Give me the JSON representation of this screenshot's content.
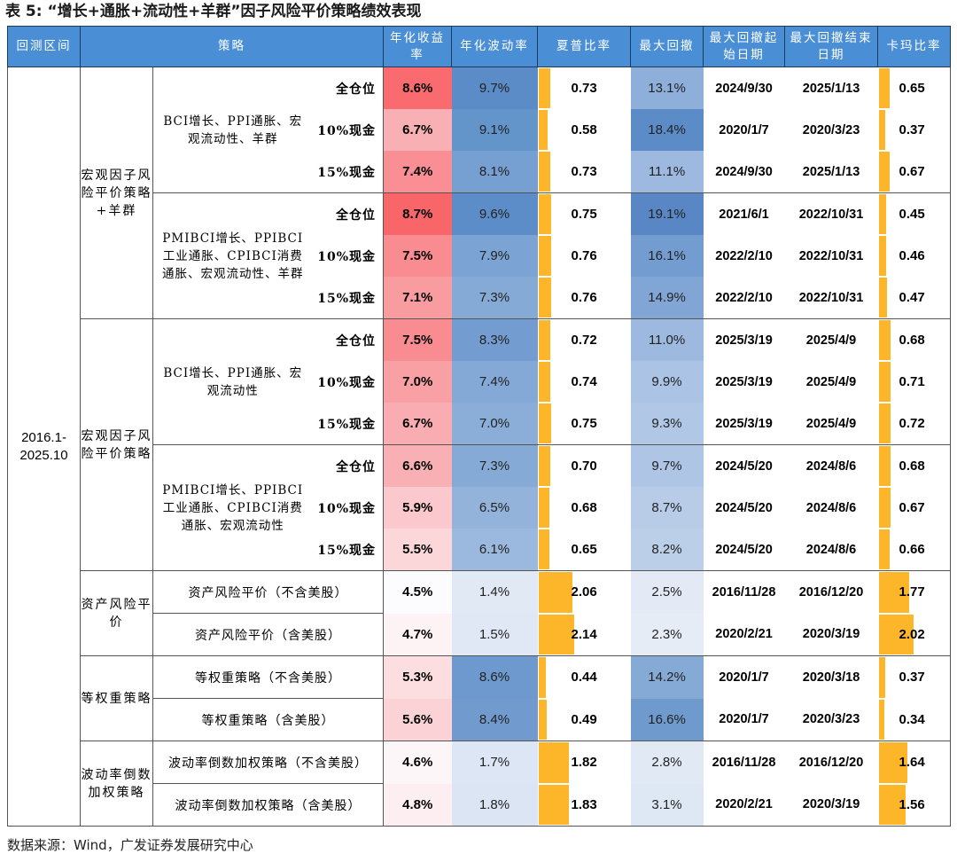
{
  "title": "表 5:  “增长+通胀+流动性+羊群”因子风险平价策略绩效表现",
  "source": "数据来源：Wind，广发证券发展研究中心",
  "header": {
    "period": "回测区间",
    "strategy": "策略",
    "annual_return": "年化收益率",
    "annual_vol": "年化波动率",
    "sharpe": "夏普比率",
    "max_dd": "最大回撤",
    "dd_start": "最大回撤起始日期",
    "dd_end": "最大回撤结束日期",
    "calmar": "卡玛比率"
  },
  "period": "2016.1-2025.10",
  "groups": [
    {
      "label": "宏观因子风险平价策略+羊群"
    },
    {
      "label": "宏观因子风险平价策略"
    },
    {
      "label": "资产风险平价"
    },
    {
      "label": "等权重策略"
    },
    {
      "label": "波动率倒数加权策略"
    }
  ],
  "subgroups": [
    {
      "label": "BCI增长、PPI通胀、宏观流动性、羊群"
    },
    {
      "label": "PMIBCI增长、PPIBCI工业通胀、CPIBCI消费通胀、宏观流动性、羊群"
    },
    {
      "label": "BCI增长、PPI通胀、宏观流动性"
    },
    {
      "label": "PMIBCI增长、PPIBCI工业通胀、CPIBCI消费通胀、宏观流动性"
    }
  ],
  "rows": [
    {
      "name": "全仓位",
      "ret": "8.6%",
      "vol": "9.7%",
      "sharpe": "0.73",
      "dd": "13.1%",
      "start": "2024/9/30",
      "end": "2025/1/13",
      "calmar": "0.65",
      "ret_bg": "#f96b6e",
      "vol_bg": "#5b8cc8",
      "dd_bg": "#8eafd9",
      "sharpe_w": "80",
      "calmar_w": "56"
    },
    {
      "name": "10%现金",
      "ret": "6.7%",
      "vol": "9.1%",
      "sharpe": "0.58",
      "dd": "18.4%",
      "start": "2020/1/7",
      "end": "2020/3/23",
      "calmar": "0.37",
      "ret_bg": "#f9b0b5",
      "vol_bg": "#6395cb",
      "dd_bg": "#5b8cc8",
      "sharpe_w": "63",
      "calmar_w": "32"
    },
    {
      "name": "15%现金",
      "ret": "7.4%",
      "vol": "8.1%",
      "sharpe": "0.73",
      "dd": "11.1%",
      "start": "2024/9/30",
      "end": "2025/1/13",
      "calmar": "0.67",
      "ret_bg": "#f98f94",
      "vol_bg": "#77a0d2",
      "dd_bg": "#9db9e0",
      "sharpe_w": "80",
      "calmar_w": "58"
    },
    {
      "name": "全仓位",
      "ret": "8.7%",
      "vol": "9.6%",
      "sharpe": "0.75",
      "dd": "19.1%",
      "start": "2021/6/1",
      "end": "2022/10/31",
      "calmar": "0.45",
      "ret_bg": "#f96669",
      "vol_bg": "#5d8dc8",
      "dd_bg": "#5987c6",
      "sharpe_w": "82",
      "calmar_w": "40"
    },
    {
      "name": "10%现金",
      "ret": "7.5%",
      "vol": "7.9%",
      "sharpe": "0.76",
      "dd": "16.1%",
      "start": "2022/2/10",
      "end": "2022/10/31",
      "calmar": "0.46",
      "ret_bg": "#f98c91",
      "vol_bg": "#7ba3d3",
      "dd_bg": "#739dd1",
      "sharpe_w": "83",
      "calmar_w": "41"
    },
    {
      "name": "15%现金",
      "ret": "7.1%",
      "vol": "7.3%",
      "sharpe": "0.76",
      "dd": "14.9%",
      "start": "2022/2/10",
      "end": "2022/10/31",
      "calmar": "0.47",
      "ret_bg": "#f99ca0",
      "vol_bg": "#86aad6",
      "dd_bg": "#81a6d5",
      "sharpe_w": "83",
      "calmar_w": "42"
    },
    {
      "name": "全仓位",
      "ret": "7.5%",
      "vol": "8.3%",
      "sharpe": "0.72",
      "dd": "11.0%",
      "start": "2025/3/19",
      "end": "2025/4/9",
      "calmar": "0.68",
      "ret_bg": "#f98c91",
      "vol_bg": "#739dd0",
      "dd_bg": "#9eb9e0",
      "sharpe_w": "79",
      "calmar_w": "61"
    },
    {
      "name": "10%现金",
      "ret": "7.0%",
      "vol": "7.4%",
      "sharpe": "0.74",
      "dd": "9.9%",
      "start": "2025/3/19",
      "end": "2025/4/9",
      "calmar": "0.71",
      "ret_bg": "#f9a0a5",
      "vol_bg": "#84a9d6",
      "dd_bg": "#abc3e4",
      "sharpe_w": "81",
      "calmar_w": "63"
    },
    {
      "name": "15%现金",
      "ret": "6.7%",
      "vol": "7.0%",
      "sharpe": "0.75",
      "dd": "9.3%",
      "start": "2025/3/19",
      "end": "2025/4/9",
      "calmar": "0.72",
      "ret_bg": "#f9acb1",
      "vol_bg": "#8aaed8",
      "dd_bg": "#b1c7e6",
      "sharpe_w": "82",
      "calmar_w": "64"
    },
    {
      "name": "全仓位",
      "ret": "6.6%",
      "vol": "7.3%",
      "sharpe": "0.70",
      "dd": "9.7%",
      "start": "2024/5/20",
      "end": "2024/8/6",
      "calmar": "0.68",
      "ret_bg": "#f9b0b4",
      "vol_bg": "#86aad6",
      "dd_bg": "#aec5e5",
      "sharpe_w": "77",
      "calmar_w": "61"
    },
    {
      "name": "10%现金",
      "ret": "5.9%",
      "vol": "6.5%",
      "sharpe": "0.68",
      "dd": "8.7%",
      "start": "2024/5/20",
      "end": "2024/8/6",
      "calmar": "0.67",
      "ret_bg": "#fbc9cd",
      "vol_bg": "#93b3db",
      "dd_bg": "#b8cce8",
      "sharpe_w": "75",
      "calmar_w": "60"
    },
    {
      "name": "15%现金",
      "ret": "5.5%",
      "vol": "6.1%",
      "sharpe": "0.65",
      "dd": "8.2%",
      "start": "2024/5/20",
      "end": "2024/8/6",
      "calmar": "0.66",
      "ret_bg": "#fcd7da",
      "vol_bg": "#9bb9de",
      "dd_bg": "#bccfe9",
      "sharpe_w": "72",
      "calmar_w": "59"
    },
    {
      "name": "资产风险平价（不含美股）",
      "ret": "4.5%",
      "vol": "1.4%",
      "sharpe": "2.06",
      "dd": "2.5%",
      "start": "2016/11/28",
      "end": "2016/12/20",
      "calmar": "1.77",
      "ret_bg": "#fcfcff",
      "vol_bg": "#e1e9f5",
      "dd_bg": "#e3eaf6",
      "sharpe_w": "226",
      "calmar_w": "159"
    },
    {
      "name": "资产风险平价（含美股）",
      "ret": "4.7%",
      "vol": "1.5%",
      "sharpe": "2.14",
      "dd": "2.3%",
      "start": "2020/2/21",
      "end": "2020/3/19",
      "calmar": "2.02",
      "ret_bg": "#fdf2f4",
      "vol_bg": "#e0e8f5",
      "dd_bg": "#e5ecf6",
      "sharpe_w": "235",
      "calmar_w": "182"
    },
    {
      "name": "等权重策略（不含美股）",
      "ret": "5.3%",
      "vol": "8.6%",
      "sharpe": "0.44",
      "dd": "14.2%",
      "start": "2020/1/7",
      "end": "2020/3/18",
      "calmar": "0.37",
      "ret_bg": "#fcdde0",
      "vol_bg": "#6d99ce",
      "dd_bg": "#86aad6",
      "sharpe_w": "48",
      "calmar_w": "33"
    },
    {
      "name": "等权重策略（含美股）",
      "ret": "5.6%",
      "vol": "8.4%",
      "sharpe": "0.49",
      "dd": "16.6%",
      "start": "2020/1/7",
      "end": "2020/3/23",
      "calmar": "0.34",
      "ret_bg": "#fbd3d7",
      "vol_bg": "#719bcf",
      "dd_bg": "#6e9ace",
      "sharpe_w": "53",
      "calmar_w": "30"
    },
    {
      "name": "波动率倒数加权策略（不含美股）",
      "ret": "4.6%",
      "vol": "1.7%",
      "sharpe": "1.82",
      "dd": "2.8%",
      "start": "2016/11/28",
      "end": "2016/12/20",
      "calmar": "1.64",
      "ret_bg": "#fdf6f8",
      "vol_bg": "#dde6f4",
      "dd_bg": "#e1e9f5",
      "sharpe_w": "200",
      "calmar_w": "148"
    },
    {
      "name": "波动率倒数加权策略（含美股）",
      "ret": "4.8%",
      "vol": "1.8%",
      "sharpe": "1.83",
      "dd": "3.1%",
      "start": "2020/2/21",
      "end": "2020/3/19",
      "calmar": "1.56",
      "ret_bg": "#fdeef1",
      "vol_bg": "#dbe5f3",
      "dd_bg": "#dee7f4",
      "sharpe_w": "201",
      "calmar_w": "140"
    }
  ],
  "colors": {
    "header_bg": "#4a8fd6",
    "bar": "#fdb52a",
    "border": "#555555"
  }
}
